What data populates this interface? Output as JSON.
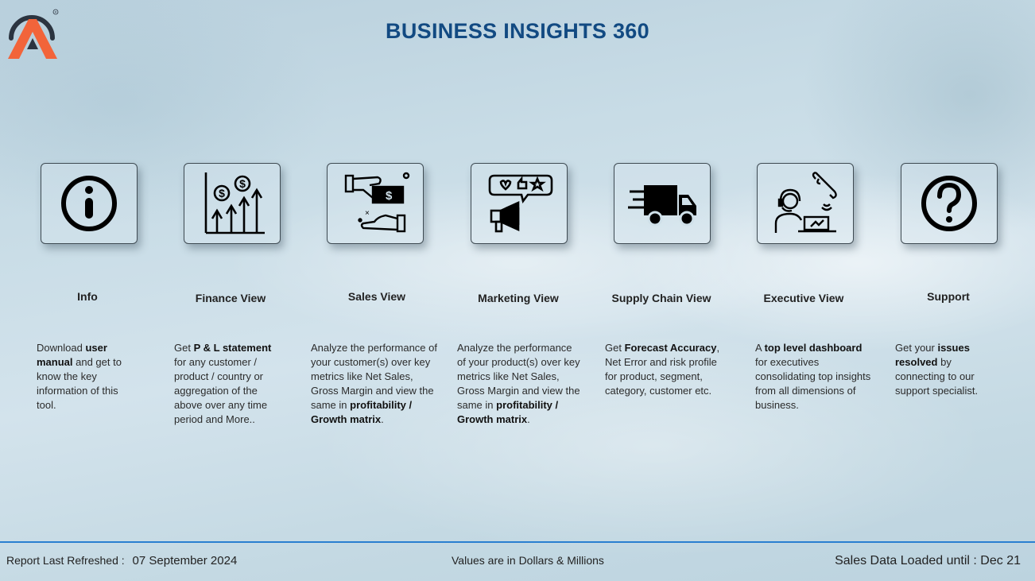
{
  "header": {
    "title": "BUSINESS INSIGHTS 360"
  },
  "colors": {
    "title": "#124a82",
    "accent_line": "#2a7fd0",
    "logo_orange": "#f2643a",
    "logo_dark": "#2b3440"
  },
  "tiles": [
    {
      "icon": "info-icon",
      "label": "Info",
      "desc": [
        [
          "Download ",
          false
        ],
        [
          "user manual",
          true
        ],
        [
          " and get to know the key information of this tool.",
          false
        ]
      ]
    },
    {
      "icon": "finance-growth-icon",
      "label": "Finance View",
      "desc": [
        [
          "Get  ",
          false
        ],
        [
          "P & L statement",
          true
        ],
        [
          " for any customer / product / country or aggregation of the above over any time period and More..",
          false
        ]
      ]
    },
    {
      "icon": "money-handover-icon",
      "label": "Sales View",
      "desc": [
        [
          "Analyze the performance of your customer(s) over key metrics like Net Sales, Gross Margin and view the same in ",
          false
        ],
        [
          "profitability / Growth matrix",
          true
        ],
        [
          ".",
          false
        ]
      ]
    },
    {
      "icon": "marketing-megaphone-icon",
      "label": "Marketing View",
      "desc": [
        [
          "Analyze the performance of your product(s) over key metrics like Net Sales, Gross Margin and view the same in ",
          false
        ],
        [
          "profitability / Growth matrix",
          true
        ],
        [
          ".",
          false
        ]
      ]
    },
    {
      "icon": "delivery-truck-icon",
      "label": "Supply Chain View",
      "desc": [
        [
          "Get ",
          false
        ],
        [
          "Forecast Accuracy",
          true
        ],
        [
          ", Net Error and risk profile for product, segment, category, customer etc.",
          false
        ]
      ]
    },
    {
      "icon": "executive-support-icon",
      "label": "Executive View",
      "desc": [
        [
          "A ",
          false
        ],
        [
          "top level dashboard",
          true
        ],
        [
          " for executives consolidating top insights from all dimensions of business.",
          false
        ]
      ]
    },
    {
      "icon": "question-icon",
      "label": "Support",
      "desc": [
        [
          "Get your ",
          false
        ],
        [
          "issues resolved",
          true
        ],
        [
          " by connecting to our support specialist.",
          false
        ]
      ]
    }
  ],
  "footer": {
    "refreshed_label": "Report Last Refreshed :",
    "refreshed_date": "07 September 2024",
    "units_note": "Values are in Dollars & Millions",
    "sales_loaded": "Sales Data Loaded until : Dec 21"
  }
}
